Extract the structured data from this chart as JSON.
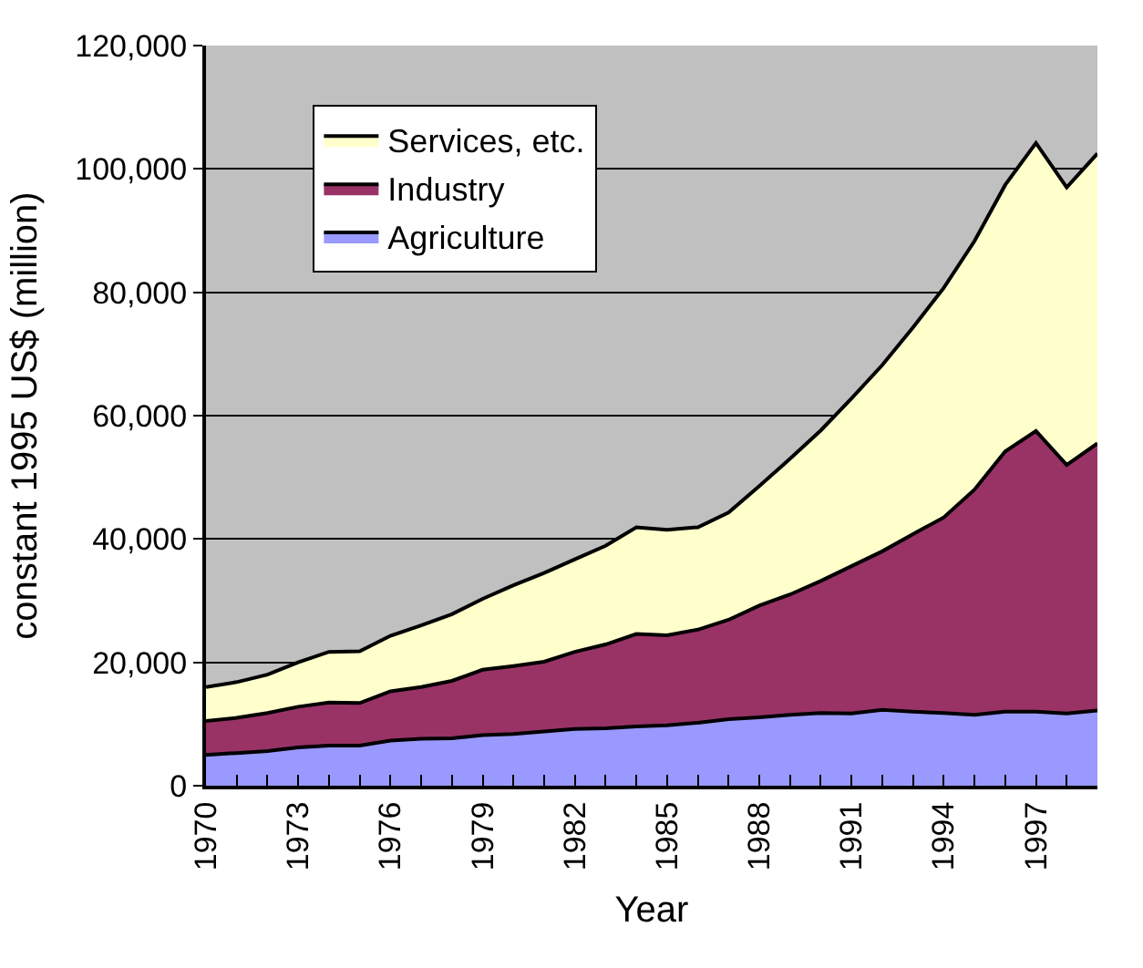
{
  "chart_data": {
    "type": "area",
    "stacked": true,
    "xlabel": "Year",
    "ylabel": "constant 1995 US$ (million)",
    "x": [
      1970,
      1971,
      1972,
      1973,
      1974,
      1975,
      1976,
      1977,
      1978,
      1979,
      1980,
      1981,
      1982,
      1983,
      1984,
      1985,
      1986,
      1987,
      1988,
      1989,
      1990,
      1991,
      1992,
      1993,
      1994,
      1995,
      1996,
      1997,
      1998,
      1999
    ],
    "series": [
      {
        "name": "Agriculture",
        "color": "#9999ff",
        "values": [
          5000,
          5300,
          5600,
          6200,
          6500,
          6500,
          7300,
          7600,
          7700,
          8200,
          8400,
          8800,
          9200,
          9300,
          9600,
          9800,
          10200,
          10800,
          11100,
          11500,
          11800,
          11700,
          12300,
          12000,
          11800,
          11500,
          12000,
          12000,
          11700,
          12200
        ]
      },
      {
        "name": "Industry",
        "color": "#993366",
        "values": [
          5500,
          5700,
          6200,
          6600,
          7000,
          6900,
          8000,
          8400,
          9300,
          10600,
          11000,
          11300,
          12500,
          13600,
          15000,
          14600,
          15100,
          16100,
          18100,
          19500,
          21400,
          23900,
          25700,
          28800,
          31700,
          36500,
          42200,
          45500,
          40300,
          43300
        ]
      },
      {
        "name": "Services, etc.",
        "color": "#ffffcc",
        "values": [
          5500,
          5800,
          6200,
          7200,
          8200,
          8400,
          9000,
          10000,
          10800,
          11500,
          13100,
          14400,
          15000,
          16000,
          17300,
          17100,
          16600,
          17400,
          19400,
          22000,
          24400,
          27200,
          30200,
          33500,
          37200,
          40300,
          43200,
          46700,
          45000,
          47000
        ]
      }
    ],
    "xlim": [
      1970,
      1999
    ],
    "xticks": [
      1970,
      {
        "value": 1971,
        "label": null
      },
      {
        "value": 1972,
        "label": null
      },
      1973,
      {
        "value": 1974,
        "label": null
      },
      {
        "value": 1975,
        "label": null
      },
      1976,
      {
        "value": 1977,
        "label": null
      },
      {
        "value": 1978,
        "label": null
      },
      1979,
      {
        "value": 1980,
        "label": null
      },
      {
        "value": 1981,
        "label": null
      },
      1982,
      {
        "value": 1983,
        "label": null
      },
      {
        "value": 1984,
        "label": null
      },
      1985,
      {
        "value": 1986,
        "label": null
      },
      {
        "value": 1987,
        "label": null
      },
      1988,
      {
        "value": 1989,
        "label": null
      },
      {
        "value": 1990,
        "label": null
      },
      1991,
      {
        "value": 1992,
        "label": null
      },
      {
        "value": 1993,
        "label": null
      },
      1994,
      {
        "value": 1995,
        "label": null
      },
      {
        "value": 1996,
        "label": null
      },
      1997,
      {
        "value": 1998,
        "label": null
      },
      {
        "value": 1999,
        "label": null
      }
    ],
    "ylim": [
      0,
      120000
    ],
    "yticks": [
      {
        "value": 0,
        "label": "0"
      },
      {
        "value": 20000,
        "label": "20,000"
      },
      {
        "value": 40000,
        "label": "40,000"
      },
      {
        "value": 60000,
        "label": "60,000"
      },
      {
        "value": 80000,
        "label": "80,000"
      },
      {
        "value": 100000,
        "label": "100,000"
      },
      {
        "value": 120000,
        "label": "120,000"
      }
    ],
    "grid": "y",
    "legend": "top left"
  }
}
